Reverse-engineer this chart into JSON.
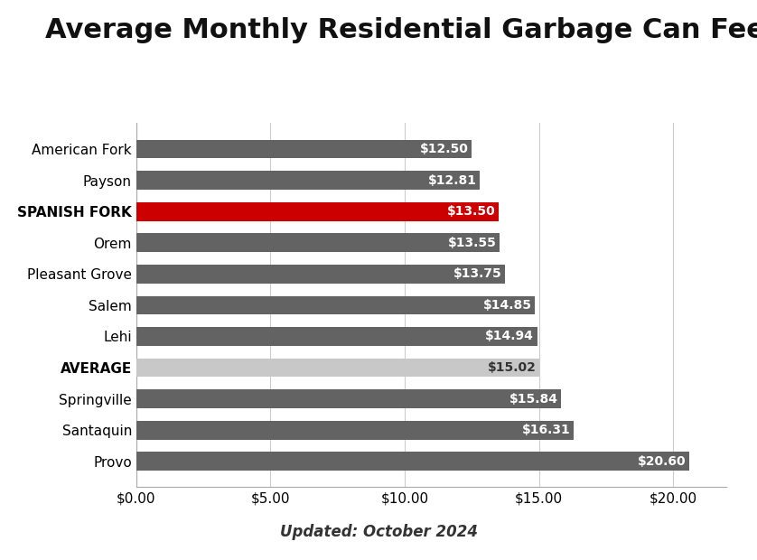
{
  "title": "Average Monthly Residential Garbage Can Fee",
  "subtitle": "Updated: October 2024",
  "categories": [
    "American Fork",
    "Payson",
    "SPANISH FORK",
    "Orem",
    "Pleasant Grove",
    "Salem",
    "Lehi",
    "AVERAGE",
    "Springville",
    "Santaquin",
    "Provo"
  ],
  "values": [
    12.5,
    12.81,
    13.5,
    13.55,
    13.75,
    14.85,
    14.94,
    15.02,
    15.84,
    16.31,
    20.6
  ],
  "bar_colors": [
    "#636363",
    "#636363",
    "#cc0000",
    "#636363",
    "#636363",
    "#636363",
    "#636363",
    "#c8c8c8",
    "#636363",
    "#636363",
    "#636363"
  ],
  "label_colors": [
    "#ffffff",
    "#ffffff",
    "#ffffff",
    "#ffffff",
    "#ffffff",
    "#ffffff",
    "#ffffff",
    "#333333",
    "#ffffff",
    "#ffffff",
    "#ffffff"
  ],
  "bold_labels": [
    "SPANISH FORK",
    "AVERAGE"
  ],
  "xlim": [
    0,
    22
  ],
  "xticks": [
    0,
    5,
    10,
    15,
    20
  ],
  "xtick_labels": [
    "$0.00",
    "$5.00",
    "$10.00",
    "$15.00",
    "$20.00"
  ],
  "background_color": "#ffffff",
  "title_fontsize": 22,
  "subtitle_fontsize": 12,
  "label_fontsize": 10,
  "ytick_fontsize": 11,
  "xtick_fontsize": 11,
  "bar_height": 0.6
}
